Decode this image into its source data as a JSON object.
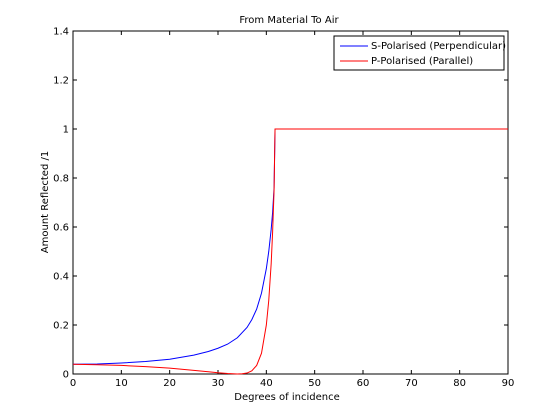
{
  "chart_data": {
    "type": "line",
    "title": "From Material To Air",
    "xlabel": "Degrees of incidence",
    "ylabel": "Amount Reflected /1",
    "xlim": [
      0,
      90
    ],
    "ylim": [
      0,
      1.4
    ],
    "xticks": [
      0,
      10,
      20,
      30,
      40,
      50,
      60,
      70,
      80,
      90
    ],
    "yticks": [
      0,
      0.2,
      0.4,
      0.6,
      0.8,
      1,
      1.2,
      1.4
    ],
    "grid": false,
    "legend_position": "top-right",
    "series": [
      {
        "name": "S-Polarised (Perpendicular)",
        "color": "#0000ff",
        "x": [
          0,
          5,
          10,
          15,
          20,
          25,
          28,
          30,
          32,
          34,
          36,
          37,
          38,
          39,
          40,
          40.5,
          41,
          41.3,
          41.6,
          41.8
        ],
        "y": [
          0.04,
          0.041,
          0.045,
          0.051,
          0.06,
          0.077,
          0.092,
          0.105,
          0.122,
          0.148,
          0.19,
          0.222,
          0.265,
          0.33,
          0.43,
          0.5,
          0.59,
          0.66,
          0.76,
          1.0
        ]
      },
      {
        "name": "P-Polarised (Parallel)",
        "color": "#ff0000",
        "x": [
          0,
          5,
          10,
          15,
          20,
          25,
          28,
          30,
          32,
          34,
          35,
          36,
          37,
          38,
          39,
          40,
          40.5,
          41,
          41.3,
          41.6,
          41.8,
          42,
          50,
          60,
          70,
          80,
          90
        ],
        "y": [
          0.04,
          0.038,
          0.035,
          0.03,
          0.024,
          0.015,
          0.009,
          0.005,
          0.002,
          0.0,
          0.001,
          0.004,
          0.013,
          0.035,
          0.085,
          0.2,
          0.3,
          0.45,
          0.58,
          0.75,
          1.0,
          1.0,
          1.0,
          1.0,
          1.0,
          1.0,
          1.0
        ]
      }
    ]
  }
}
